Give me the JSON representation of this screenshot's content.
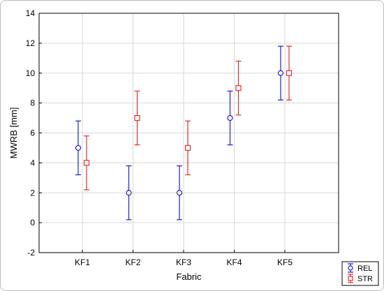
{
  "chart_data": {
    "type": "scatter",
    "subtype": "error-bar",
    "title": "",
    "xlabel": "Fabric",
    "ylabel": "MWRB  [mm]",
    "categories": [
      "KF1",
      "KF2",
      "KF3",
      "KF4",
      "KF5"
    ],
    "ylim": [
      -2,
      14
    ],
    "yticks": [
      -2,
      0,
      2,
      4,
      6,
      8,
      10,
      12,
      14
    ],
    "grid": true,
    "legend_position": "bottom-right",
    "series": [
      {
        "name": "REL",
        "color": "#1f1fd6",
        "marker": "circle",
        "values": [
          5,
          2,
          2,
          7,
          10
        ],
        "lower": [
          3.2,
          0.2,
          0.2,
          5.2,
          8.2
        ],
        "upper": [
          6.8,
          3.8,
          3.8,
          8.8,
          11.8
        ]
      },
      {
        "name": "STR",
        "color": "#e03030",
        "marker": "square",
        "values": [
          4,
          7,
          5,
          9,
          10
        ],
        "lower": [
          2.2,
          5.2,
          3.2,
          7.2,
          8.2
        ],
        "upper": [
          5.8,
          8.8,
          6.8,
          10.8,
          11.8
        ]
      }
    ]
  }
}
